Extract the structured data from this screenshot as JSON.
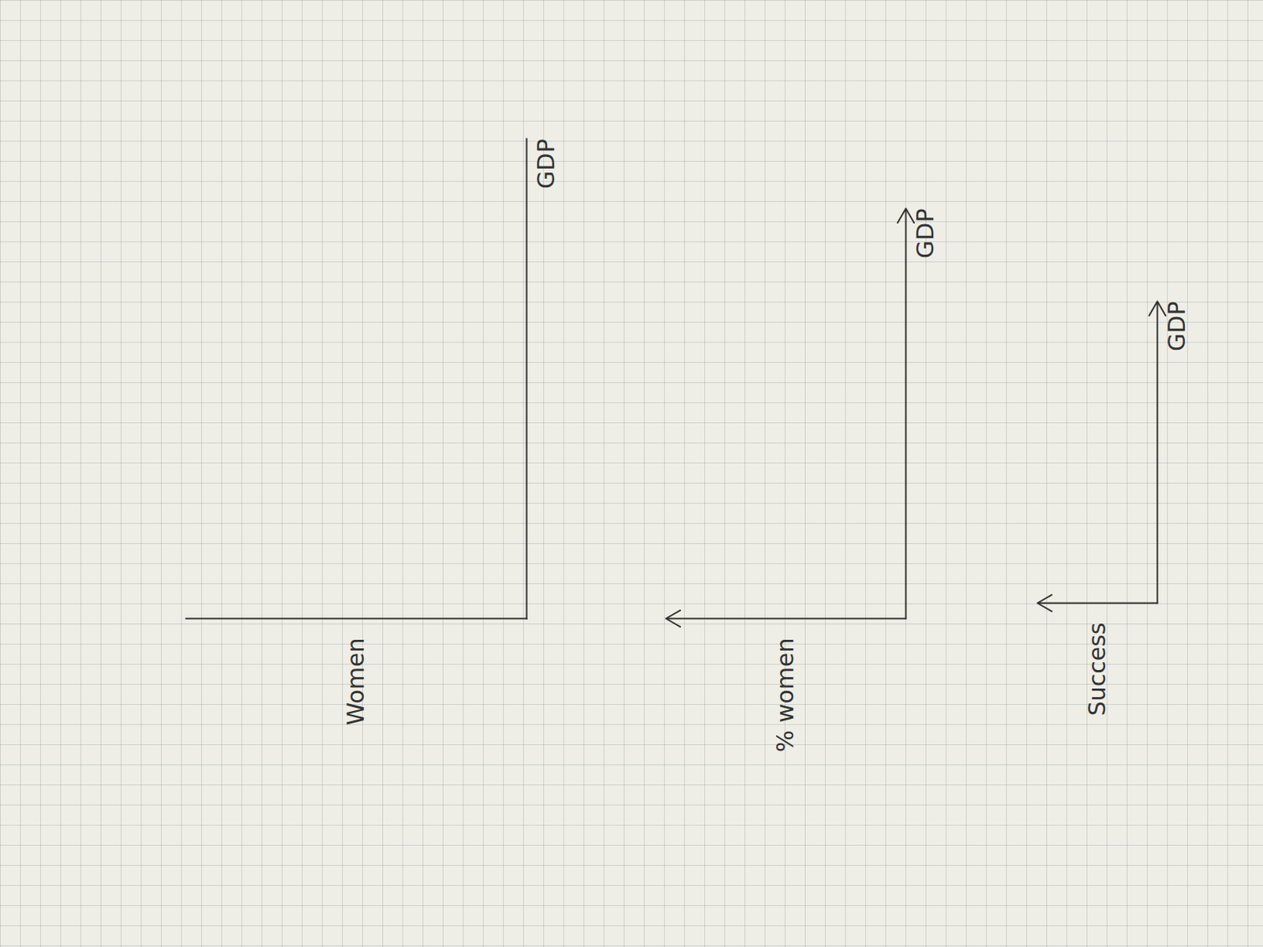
{
  "chart_data": [
    {
      "type": "line",
      "x_label": "GDP",
      "y_label": "Women",
      "xlim": [
        0,
        10
      ],
      "ylim": [
        0,
        10
      ],
      "xticks": [],
      "yticks": [],
      "tick_labels": false,
      "marker": "none",
      "color": "#333333"
    },
    {
      "type": "line",
      "x_label": "GDP",
      "y_label": "% women",
      "xlim": [
        0,
        10
      ],
      "ylim": [
        0,
        10
      ],
      "xticks": [],
      "yticks": [],
      "tick_labels": false,
      "marker": "arrow",
      "color": "#333333"
    },
    {
      "type": "line",
      "x_label": "GDP",
      "y_label": "Success",
      "xlim": [
        0,
        10
      ],
      "ylim": [
        0,
        10
      ],
      "xticks": [],
      "yticks": [],
      "tick_labels": false,
      "marker": "arrow",
      "color": "#333333"
    }
  ]
}
